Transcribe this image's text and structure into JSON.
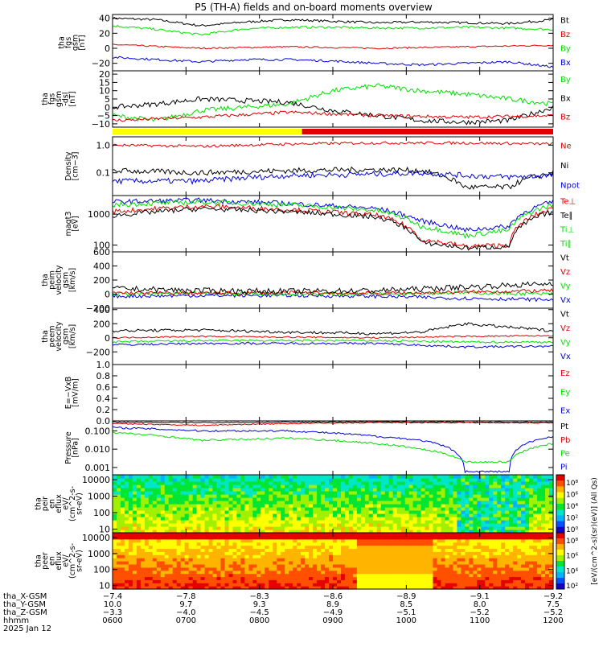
{
  "title": "P5 (TH-A) fields and on-board moments overview",
  "colors": {
    "black": "#000000",
    "red": "#e00000",
    "green": "#00e000",
    "blue": "#0000e0",
    "yellow": "#ffff00"
  },
  "chart_data": [
    {
      "type": "line",
      "name": "fgs",
      "ylabel": [
        "tha",
        "fgs",
        "gsm",
        "[nT]"
      ],
      "ylim": [
        -30,
        45
      ],
      "yticks": [
        {
          "v": 40,
          "label": "40"
        },
        {
          "v": 20,
          "label": "20"
        },
        {
          "v": 0,
          "label": "0"
        },
        {
          "v": -20,
          "label": "−20"
        }
      ],
      "legend": [
        {
          "text": "Bt",
          "color": "black"
        },
        {
          "text": "Bz",
          "color": "red"
        },
        {
          "text": "By",
          "color": "green"
        },
        {
          "text": "Bx",
          "color": "blue"
        }
      ],
      "series": [
        {
          "color": "black",
          "x": [
            0,
            0.1,
            0.2,
            0.3,
            0.4,
            0.5,
            0.6,
            0.7,
            0.8,
            0.9,
            1
          ],
          "y": [
            40,
            38,
            30,
            35,
            38,
            36,
            34,
            35,
            34,
            33,
            38
          ],
          "noise": 1.5
        },
        {
          "color": "red",
          "x": [
            0,
            0.2,
            0.4,
            0.6,
            0.8,
            1
          ],
          "y": [
            5,
            0,
            2,
            0,
            2,
            4
          ],
          "noise": 1
        },
        {
          "color": "green",
          "x": [
            0,
            0.1,
            0.2,
            0.3,
            0.4,
            0.5,
            0.6,
            0.7,
            0.8,
            0.9,
            1
          ],
          "y": [
            30,
            25,
            18,
            26,
            28,
            28,
            27,
            27,
            28,
            27,
            25
          ],
          "noise": 1.5
        },
        {
          "color": "blue",
          "x": [
            0,
            0.1,
            0.2,
            0.3,
            0.4,
            0.5,
            0.6,
            0.7,
            0.8,
            0.9,
            1
          ],
          "y": [
            -12,
            -15,
            -18,
            -15,
            -15,
            -17,
            -20,
            -22,
            -20,
            -18,
            -25
          ],
          "noise": 1.5
        }
      ]
    },
    {
      "type": "line",
      "name": "fgs_dsl",
      "ylabel": [
        "tha",
        "fgs",
        "gsm",
        "-dsl",
        "[nT]"
      ],
      "ylim": [
        -12,
        22
      ],
      "yticks": [
        {
          "v": 20,
          "label": "20"
        },
        {
          "v": 15,
          "label": "15"
        },
        {
          "v": 10,
          "label": "10"
        },
        {
          "v": 5,
          "label": "5"
        },
        {
          "v": 0,
          "label": "0"
        },
        {
          "v": -5,
          "label": "−5"
        },
        {
          "v": -10,
          "label": "−10"
        }
      ],
      "legend": [
        {
          "text": "By",
          "color": "green"
        },
        {
          "text": "Bx",
          "color": "black"
        },
        {
          "text": "Bz",
          "color": "red"
        }
      ],
      "series": [
        {
          "color": "green",
          "x": [
            0,
            0.1,
            0.2,
            0.3,
            0.4,
            0.5,
            0.6,
            0.7,
            0.8,
            0.9,
            1
          ],
          "y": [
            -5,
            -8,
            -2,
            0,
            2,
            10,
            13,
            10,
            8,
            5,
            2
          ],
          "noise": 1.5
        },
        {
          "color": "black",
          "x": [
            0,
            0.1,
            0.2,
            0.3,
            0.4,
            0.5,
            0.6,
            0.7,
            0.8,
            0.9,
            1
          ],
          "y": [
            0,
            2,
            5,
            4,
            3,
            -2,
            -5,
            -8,
            -9,
            -8,
            0
          ],
          "noise": 1.5
        },
        {
          "color": "red",
          "x": [
            0,
            0.2,
            0.4,
            0.6,
            0.8,
            1
          ],
          "y": [
            -8,
            -6,
            -3,
            -5,
            -6,
            -5
          ],
          "noise": 1
        }
      ]
    },
    {
      "type": "line",
      "name": "density",
      "ylabel": [
        "Density",
        "[cm−3]"
      ],
      "scale": "log",
      "ylim": [
        0.015,
        2
      ],
      "yticks": [
        {
          "v": 1,
          "label": "1.0"
        },
        {
          "v": 0.1,
          "label": "0.1"
        }
      ],
      "legend": [
        {
          "text": "Ne",
          "color": "red"
        },
        {
          "text": "Ni",
          "color": "black"
        },
        {
          "text": "Npot",
          "color": "blue"
        }
      ],
      "series": [
        {
          "color": "red",
          "x": [
            0,
            0.2,
            0.4,
            0.6,
            0.8,
            1
          ],
          "y": [
            1.0,
            0.9,
            1.1,
            1.2,
            1.2,
            1.1
          ],
          "noise": 0.05
        },
        {
          "color": "black",
          "x": [
            0,
            0.2,
            0.4,
            0.6,
            0.7,
            0.8,
            0.9,
            1
          ],
          "y": [
            0.12,
            0.1,
            0.12,
            0.13,
            0.12,
            0.03,
            0.03,
            0.1
          ],
          "noise": 0.1
        },
        {
          "color": "blue",
          "x": [
            0,
            0.2,
            0.4,
            0.6,
            0.7,
            0.8,
            0.9,
            1
          ],
          "y": [
            0.05,
            0.05,
            0.08,
            0.09,
            0.1,
            0.08,
            0.07,
            0.08
          ],
          "noise": 0.1
        }
      ]
    },
    {
      "type": "line",
      "name": "temperature",
      "ylabel": [
        "magt3",
        "[eV]"
      ],
      "scale": "log",
      "ylim": [
        60,
        4000
      ],
      "yticks": [
        {
          "v": 1000,
          "label": "1000"
        },
        {
          "v": 100,
          "label": "100"
        }
      ],
      "legend": [
        {
          "text": "Te⊥",
          "color": "red"
        },
        {
          "text": "Te∥",
          "color": "black"
        },
        {
          "text": "Ti⊥",
          "color": "green"
        },
        {
          "text": "Ti∥",
          "color": "green"
        }
      ],
      "series": [
        {
          "color": "blue",
          "x": [
            0,
            0.2,
            0.4,
            0.6,
            0.7,
            0.8,
            0.9,
            1
          ],
          "y": [
            2500,
            2800,
            2200,
            1500,
            600,
            300,
            400,
            2500
          ],
          "noise": 0.08
        },
        {
          "color": "green",
          "x": [
            0,
            0.2,
            0.4,
            0.6,
            0.7,
            0.8,
            0.9,
            1
          ],
          "y": [
            2000,
            2500,
            2000,
            1300,
            400,
            200,
            300,
            2000
          ],
          "noise": 0.08
        },
        {
          "color": "red",
          "x": [
            0,
            0.2,
            0.4,
            0.6,
            0.7,
            0.8,
            0.9,
            1
          ],
          "y": [
            1200,
            1800,
            1400,
            900,
            150,
            90,
            100,
            1500
          ],
          "noise": 0.08
        },
        {
          "color": "black",
          "x": [
            0,
            0.2,
            0.4,
            0.6,
            0.7,
            0.8,
            0.9,
            1
          ],
          "y": [
            900,
            1500,
            1200,
            800,
            120,
            80,
            90,
            1200
          ],
          "noise": 0.08
        }
      ]
    },
    {
      "type": "line",
      "name": "peim_velocity",
      "ylabel": [
        "tha",
        "peim",
        "velocity",
        "gsm",
        "[km/s]"
      ],
      "ylim": [
        -200,
        600
      ],
      "yticks": [
        {
          "v": 600,
          "label": "600"
        },
        {
          "v": 400,
          "label": "400"
        },
        {
          "v": 200,
          "label": "200"
        },
        {
          "v": 0,
          "label": "0"
        },
        {
          "v": -200,
          "label": "−200"
        }
      ],
      "legend": [
        {
          "text": "Vt",
          "color": "black"
        },
        {
          "text": "Vz",
          "color": "red"
        },
        {
          "text": "Vy",
          "color": "green"
        },
        {
          "text": "Vx",
          "color": "blue"
        }
      ],
      "series": [
        {
          "color": "blue",
          "x": [
            0,
            0.2,
            0.4,
            0.6,
            0.8,
            1
          ],
          "y": [
            -30,
            -20,
            -20,
            -30,
            -60,
            -80
          ],
          "noise": 25
        },
        {
          "color": "green",
          "x": [
            0,
            0.2,
            0.4,
            0.6,
            0.8,
            1
          ],
          "y": [
            0,
            10,
            0,
            10,
            20,
            0
          ],
          "noise": 25
        },
        {
          "color": "red",
          "x": [
            0,
            0.2,
            0.4,
            0.6,
            0.8,
            1
          ],
          "y": [
            20,
            10,
            20,
            10,
            30,
            50
          ],
          "noise": 25
        },
        {
          "color": "black",
          "x": [
            0,
            0.2,
            0.4,
            0.6,
            0.8,
            1
          ],
          "y": [
            80,
            50,
            40,
            50,
            100,
            150
          ],
          "noise": 40
        }
      ]
    },
    {
      "type": "line",
      "name": "peem_velocity",
      "ylabel": [
        "tha",
        "peem",
        "velocity",
        "gsm",
        "[km/s]"
      ],
      "ylim": [
        -380,
        420
      ],
      "yticks": [
        {
          "v": 400,
          "label": "400"
        },
        {
          "v": 200,
          "label": "200"
        },
        {
          "v": 0,
          "label": "0"
        },
        {
          "v": -200,
          "label": "−200"
        }
      ],
      "legend": [
        {
          "text": "Vt",
          "color": "black"
        },
        {
          "text": "Vz",
          "color": "red"
        },
        {
          "text": "Vy",
          "color": "green"
        },
        {
          "text": "Vx",
          "color": "blue"
        }
      ],
      "series": [
        {
          "color": "black",
          "x": [
            0,
            0.2,
            0.4,
            0.6,
            0.7,
            0.8,
            0.9,
            1
          ],
          "y": [
            100,
            110,
            80,
            60,
            80,
            200,
            150,
            100
          ],
          "noise": 20
        },
        {
          "color": "red",
          "x": [
            0,
            0.2,
            0.4,
            0.6,
            0.8,
            1
          ],
          "y": [
            0,
            20,
            10,
            0,
            20,
            30
          ],
          "noise": 10
        },
        {
          "color": "green",
          "x": [
            0,
            0.2,
            0.4,
            0.6,
            0.8,
            1
          ],
          "y": [
            -60,
            -40,
            -40,
            -40,
            -60,
            -60
          ],
          "noise": 15
        },
        {
          "color": "blue",
          "x": [
            0,
            0.2,
            0.4,
            0.6,
            0.8,
            1
          ],
          "y": [
            -100,
            -80,
            -80,
            -80,
            -130,
            -120
          ],
          "noise": 15
        }
      ]
    },
    {
      "type": "line",
      "name": "efield",
      "ylabel": [
        "E=−VxB",
        "[mV/m]"
      ],
      "ylim": [
        0,
        1.0
      ],
      "yticks": [
        {
          "v": 1,
          "label": "1.0"
        },
        {
          "v": 0.8,
          "label": "0.8"
        },
        {
          "v": 0.6,
          "label": "0.6"
        },
        {
          "v": 0.4,
          "label": "0.4"
        },
        {
          "v": 0.2,
          "label": "0.2"
        },
        {
          "v": 0,
          "label": "0.0"
        }
      ],
      "legend": [
        {
          "text": "Ez",
          "color": "red"
        },
        {
          "text": "Ey",
          "color": "green"
        },
        {
          "text": "Ex",
          "color": "blue"
        }
      ],
      "series": []
    },
    {
      "type": "line",
      "name": "pressure",
      "ylabel": [
        "Pressure",
        "[nPa]"
      ],
      "scale": "log",
      "ylim": [
        0.0004,
        0.35
      ],
      "yticks": [
        {
          "v": 0.1,
          "label": "0.100"
        },
        {
          "v": 0.01,
          "label": "0.010"
        },
        {
          "v": 0.001,
          "label": "0.001"
        }
      ],
      "legend": [
        {
          "text": "Pt",
          "color": "black"
        },
        {
          "text": "Pb",
          "color": "red"
        },
        {
          "text": "Pe",
          "color": "green"
        },
        {
          "text": "Pi",
          "color": "blue"
        }
      ],
      "series": [
        {
          "color": "black",
          "x": [
            0,
            0.2,
            0.4,
            0.6,
            0.8,
            1
          ],
          "y": [
            0.3,
            0.28,
            0.3,
            0.32,
            0.3,
            0.3
          ],
          "noise": 0.03
        },
        {
          "color": "red",
          "x": [
            0,
            0.2,
            0.4,
            0.6,
            0.8,
            1
          ],
          "y": [
            0.25,
            0.2,
            0.25,
            0.28,
            0.28,
            0.27
          ],
          "noise": 0.03
        },
        {
          "color": "blue",
          "x": [
            0,
            0.2,
            0.4,
            0.6,
            0.7,
            0.8,
            0.9,
            1
          ],
          "y": [
            0.15,
            0.1,
            0.1,
            0.05,
            0.03,
            0.0006,
            0.0006,
            0.05
          ],
          "noise": 0.05
        },
        {
          "color": "green",
          "x": [
            0,
            0.2,
            0.4,
            0.6,
            0.7,
            0.8,
            0.9,
            1
          ],
          "y": [
            0.08,
            0.03,
            0.04,
            0.02,
            0.01,
            0.002,
            0.002,
            0.02
          ],
          "noise": 0.05
        }
      ]
    },
    {
      "type": "heatmap",
      "name": "peir",
      "ylabel": [
        "tha",
        "peir",
        "en",
        "eflux",
        "eV/",
        "(cm^2-s-",
        "sr-eV)"
      ],
      "scale": "log",
      "ylim": [
        6,
        20000
      ],
      "yticks": [
        {
          "v": 10000,
          "label": "10000"
        },
        {
          "v": 1000,
          "label": "1000"
        },
        {
          "v": 100,
          "label": "100"
        },
        {
          "v": 10,
          "label": "10"
        }
      ]
    },
    {
      "type": "heatmap",
      "name": "peer",
      "ylabel": [
        "tha",
        "peer",
        "en",
        "eflux",
        "eV/",
        "(cm^2-s-",
        "sr-eV)"
      ],
      "scale": "log",
      "ylim": [
        6,
        20000
      ],
      "yticks": [
        {
          "v": 10000,
          "label": "10000"
        },
        {
          "v": 1000,
          "label": "1000"
        },
        {
          "v": 100,
          "label": "100"
        },
        {
          "v": 10,
          "label": "10"
        }
      ]
    }
  ],
  "colorbar": {
    "label": "[eV/(cm^2-s)(sr)(eV)] (All Qs)",
    "ticks": [
      "10⁸",
      "10⁶",
      "10⁴",
      "10²",
      "10⁰"
    ],
    "ticks2": [
      "10⁸",
      "10⁶",
      "10⁴",
      "10²"
    ]
  },
  "axis": {
    "rows": [
      {
        "label": "tha_X-GSM",
        "values": [
          "−7.4",
          "−7.8",
          "−8.3",
          "−8.6",
          "−8.9",
          "−9.1",
          "−9.2"
        ]
      },
      {
        "label": "tha_Y-GSM",
        "values": [
          "10.0",
          "9.7",
          "9.3",
          "8.9",
          "8.5",
          "8.0",
          "7.5"
        ]
      },
      {
        "label": "tha_Z-GSM",
        "values": [
          "−3.3",
          "−4.0",
          "−4.5",
          "−4.9",
          "−5.1",
          "−5.2",
          "−5.2"
        ]
      },
      {
        "label": "hhmm",
        "values": [
          "0600",
          "0700",
          "0800",
          "0900",
          "1000",
          "1100",
          "1200"
        ]
      }
    ],
    "date": "2025 Jan 12"
  }
}
